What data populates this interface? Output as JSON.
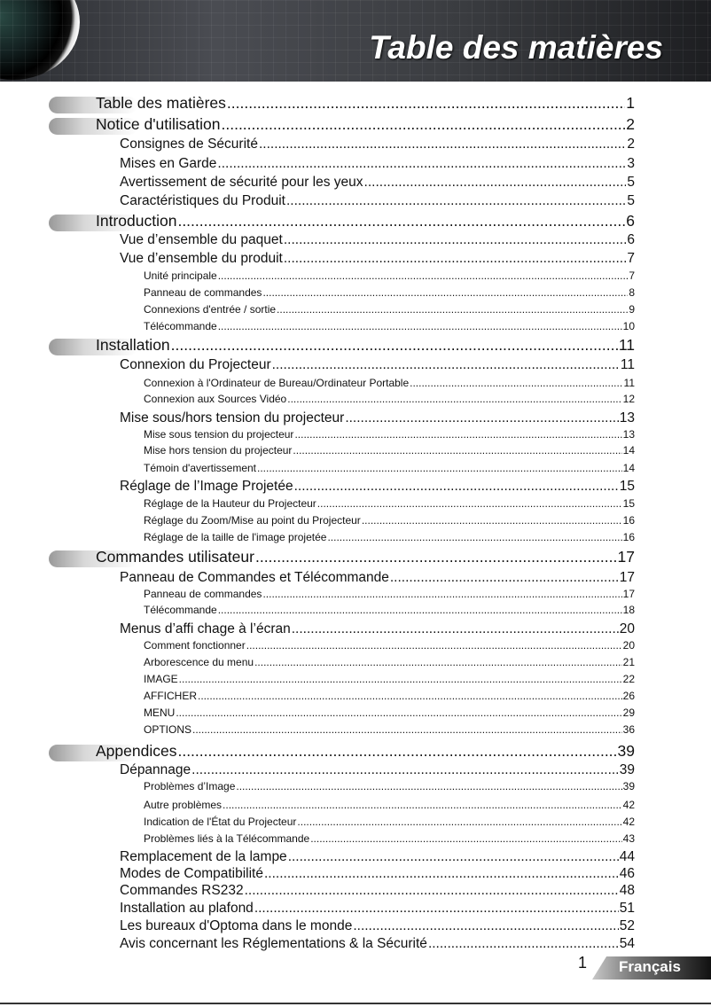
{
  "header": {
    "title": "Table des matières"
  },
  "footer": {
    "page_number": "1",
    "language": "Français"
  },
  "entries": [
    {
      "level": 1,
      "label": "Table des matières",
      "page": "1"
    },
    {
      "level": 1,
      "label": "Notice d'utilisation",
      "page": "2"
    },
    {
      "level": 2,
      "label": "Consignes de Sécurité",
      "page": "2"
    },
    {
      "level": 2,
      "label": "Mises en Garde",
      "page": "3"
    },
    {
      "level": 2,
      "label": "Avertissement de sécurité pour les yeux",
      "page": "5"
    },
    {
      "level": 2,
      "label": "Caractéristiques du Produit",
      "page": "5"
    },
    {
      "level": 1,
      "label": "Introduction",
      "page": "6"
    },
    {
      "level": 2,
      "label": "Vue d’ensemble du paquet",
      "page": "6"
    },
    {
      "level": 2,
      "label": "Vue d’ensemble du produit",
      "page": "7"
    },
    {
      "level": 3,
      "label": "Unité principale",
      "page": "7"
    },
    {
      "level": 3,
      "label": "Panneau de commandes",
      "page": "8"
    },
    {
      "level": 3,
      "label": "Connexions d'entrée / sortie",
      "page": "9"
    },
    {
      "level": 3,
      "label": "Télécommande",
      "page": "10"
    },
    {
      "level": 1,
      "label": "Installation",
      "page": "11"
    },
    {
      "level": 2,
      "label": "Connexion du Projecteur",
      "page": "11"
    },
    {
      "level": 3,
      "label": "Connexion à l'Ordinateur de Bureau/Ordinateur Portable",
      "page": "11"
    },
    {
      "level": 3,
      "label": "Connexion aux Sources Vidéo",
      "page": "12"
    },
    {
      "level": 2,
      "label": "Mise sous/hors tension du projecteur",
      "page": "13"
    },
    {
      "level": 3,
      "label": "Mise sous tension du projecteur",
      "page": "13"
    },
    {
      "level": 3,
      "label": "Mise hors tension du projecteur",
      "page": "14"
    },
    {
      "level": 3,
      "label": "Témoin d'avertissement",
      "page": "14"
    },
    {
      "level": 2,
      "label": "Réglage de l’Image Projetée",
      "page": "15"
    },
    {
      "level": 3,
      "label": "Réglage de la Hauteur du Projecteur",
      "page": "15"
    },
    {
      "level": 3,
      "label": "Réglage du Zoom/Mise au point du Projecteur",
      "page": "16"
    },
    {
      "level": 3,
      "label": "Réglage de la taille de l'image projetée",
      "page": "16"
    },
    {
      "level": 1,
      "label": "Commandes utilisateur",
      "page": "17"
    },
    {
      "level": 2,
      "label": "Panneau de Commandes et Télécommande",
      "page": "17"
    },
    {
      "level": 3,
      "label": "Panneau de commandes",
      "page": "17"
    },
    {
      "level": 3,
      "label": "Télécommande",
      "page": "18"
    },
    {
      "level": 2,
      "label": "Menus d’affi chage à l’écran",
      "page": "20"
    },
    {
      "level": 3,
      "label": "Comment fonctionner",
      "page": "20"
    },
    {
      "level": 3,
      "label": "Arborescence du menu",
      "page": "21"
    },
    {
      "level": 3,
      "label": "IMAGE",
      "page": "22"
    },
    {
      "level": 3,
      "label": "AFFICHER",
      "page": "26"
    },
    {
      "level": 3,
      "label": "MENU",
      "page": "29"
    },
    {
      "level": 3,
      "label": "OPTIONS",
      "page": "36"
    },
    {
      "level": 1,
      "label": "Appendices",
      "page": "39"
    },
    {
      "level": 2,
      "label": "Dépannage",
      "page": "39"
    },
    {
      "level": 3,
      "label": "Problèmes d’Image",
      "page": "39"
    },
    {
      "level": 3,
      "label": "Autre problèmes",
      "page": "42"
    },
    {
      "level": 3,
      "label": "Indication de l'État du Projecteur",
      "page": "42"
    },
    {
      "level": 3,
      "label": "Problèmes liés à la Télécommande",
      "page": "43"
    },
    {
      "level": 2,
      "label": "Remplacement de la lampe",
      "page": "44"
    },
    {
      "level": 2,
      "label": "Modes de Compatibilité",
      "page": "46"
    },
    {
      "level": 2,
      "label": "Commandes RS232",
      "page": "48"
    },
    {
      "level": 2,
      "label": "Installation au plafond",
      "page": "51"
    },
    {
      "level": 2,
      "label": "Les bureaux d'Optoma dans le monde",
      "page": "52"
    },
    {
      "level": 2,
      "label": "Avis concernant les Réglementations & la Sécurité",
      "page": "54"
    }
  ]
}
